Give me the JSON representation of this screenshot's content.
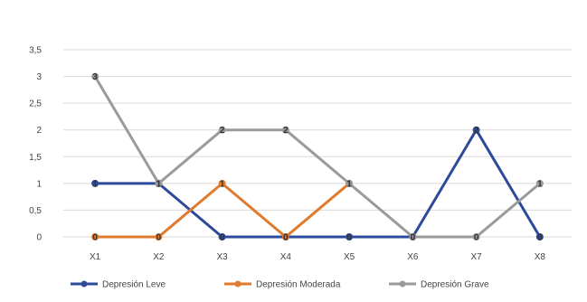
{
  "chart_data": {
    "type": "line",
    "categories": [
      "X1",
      "X2",
      "X3",
      "X4",
      "X5",
      "X6",
      "X7",
      "X8"
    ],
    "series": [
      {
        "name": "Depresión Leve",
        "values": [
          1,
          1,
          0,
          0,
          0,
          0,
          2,
          0
        ],
        "color": "#2e4b9b"
      },
      {
        "name": "Depresión Moderada",
        "values": [
          0,
          0,
          1,
          0,
          1,
          null,
          null,
          null
        ],
        "color": "#e07a2e"
      },
      {
        "name": "Depresión Grave",
        "values": [
          3,
          1,
          2,
          2,
          1,
          0,
          0,
          1
        ],
        "color": "#9a9a9a"
      }
    ],
    "y_ticks": [
      "0",
      "0,5",
      "1",
      "1,5",
      "2",
      "2,5",
      "3",
      "3,5"
    ],
    "ylim": [
      0,
      3.5
    ],
    "grid": true,
    "legend_position": "bottom"
  }
}
